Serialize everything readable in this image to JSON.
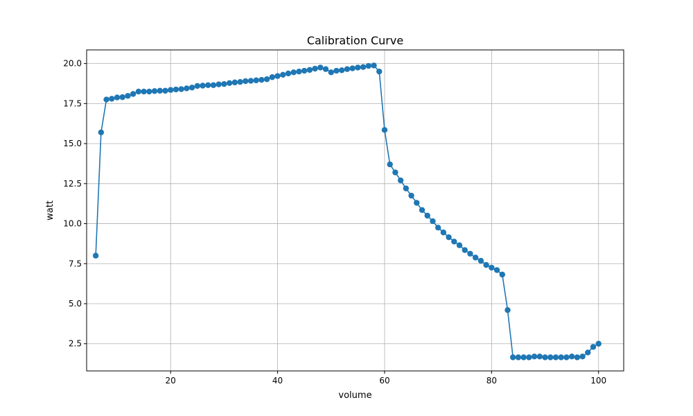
{
  "chart_data": {
    "type": "line",
    "title": "Calibration Curve",
    "xlabel": "volume",
    "ylabel": "watt",
    "xlim": [
      4.3,
      104.7
    ],
    "ylim": [
      0.8,
      20.85
    ],
    "x_ticks": [
      20,
      40,
      60,
      80,
      100
    ],
    "x_tick_labels": [
      "20",
      "40",
      "60",
      "80",
      "100"
    ],
    "y_ticks": [
      2.5,
      5.0,
      7.5,
      10.0,
      12.5,
      15.0,
      17.5,
      20.0
    ],
    "y_tick_labels": [
      "2.5",
      "5.0",
      "7.5",
      "10.0",
      "12.5",
      "15.0",
      "17.5",
      "20.0"
    ],
    "grid": true,
    "marker": "circle",
    "color": "#1f77b4",
    "series": [
      {
        "x": [
          6,
          7,
          8,
          9,
          10,
          11,
          12,
          13,
          14,
          15,
          16,
          17,
          18,
          19,
          20,
          21,
          22,
          23,
          24,
          25,
          26,
          27,
          28,
          29,
          30,
          31,
          32,
          33,
          34,
          35,
          36,
          37,
          38,
          39,
          40,
          41,
          42,
          43,
          44,
          45,
          46,
          47,
          48,
          49,
          50,
          51,
          52,
          53,
          54,
          55,
          56,
          57,
          58,
          59,
          60,
          61,
          62,
          63,
          64,
          65,
          66,
          67,
          68,
          69,
          70,
          71,
          72,
          73,
          74,
          75,
          76,
          77,
          78,
          79,
          80,
          81,
          82,
          83,
          84,
          85,
          86,
          87,
          88,
          89,
          90,
          91,
          92,
          93,
          94,
          95,
          96,
          97,
          98,
          99,
          100
        ],
        "y": [
          8.0,
          15.7,
          17.75,
          17.8,
          17.88,
          17.9,
          17.98,
          18.1,
          18.25,
          18.25,
          18.25,
          18.28,
          18.3,
          18.3,
          18.35,
          18.38,
          18.4,
          18.45,
          18.5,
          18.6,
          18.62,
          18.65,
          18.65,
          18.7,
          18.72,
          18.78,
          18.82,
          18.85,
          18.9,
          18.92,
          18.95,
          18.98,
          19.02,
          19.15,
          19.22,
          19.3,
          19.38,
          19.45,
          19.5,
          19.55,
          19.6,
          19.68,
          19.75,
          19.65,
          19.45,
          19.55,
          19.58,
          19.65,
          19.7,
          19.75,
          19.78,
          19.85,
          19.88,
          19.5,
          15.85,
          13.7,
          13.2,
          12.7,
          12.2,
          11.75,
          11.3,
          10.85,
          10.5,
          10.15,
          9.75,
          9.45,
          9.15,
          8.88,
          8.65,
          8.35,
          8.12,
          7.88,
          7.68,
          7.42,
          7.25,
          7.1,
          6.82,
          4.6,
          1.65,
          1.65,
          1.65,
          1.65,
          1.7,
          1.7,
          1.65,
          1.65,
          1.65,
          1.65,
          1.65,
          1.7,
          1.65,
          1.7,
          1.95,
          2.3,
          2.5
        ]
      }
    ]
  }
}
